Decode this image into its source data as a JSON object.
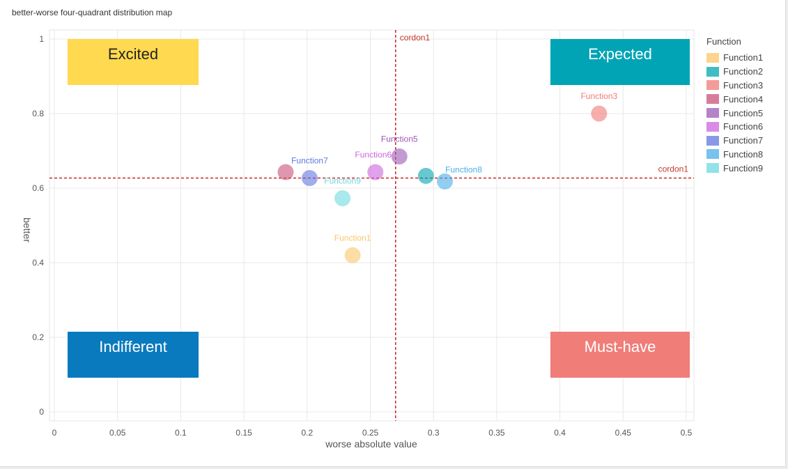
{
  "chart_title": "better-worse four-quadrant distribution map",
  "chart_data": {
    "type": "scatter",
    "title": "better-worse four-quadrant distribution map",
    "xlabel": "worse absolute value",
    "ylabel": "better",
    "xlim": [
      0,
      0.5
    ],
    "ylim": [
      0,
      1
    ],
    "xticks": [
      "0",
      "0.05",
      "0.1",
      "0.15",
      "0.2",
      "0.25",
      "0.3",
      "0.35",
      "0.4",
      "0.45",
      "0.5"
    ],
    "yticks": [
      "0",
      "0.2",
      "0.4",
      "0.6",
      "0.8",
      "1"
    ],
    "grid": true,
    "legend_title": "Function",
    "legend_position": "right",
    "series": [
      {
        "name": "Function1",
        "color": "#fbc66a",
        "x": 0.236,
        "y": 0.42
      },
      {
        "name": "Function2",
        "color": "#00a5b1",
        "x": 0.294,
        "y": 0.633
      },
      {
        "name": "Function3",
        "color": "#f07a76",
        "x": 0.431,
        "y": 0.8
      },
      {
        "name": "Function4",
        "color": "#c9517a",
        "x": 0.183,
        "y": 0.643
      },
      {
        "name": "Function5",
        "color": "#9b59b6",
        "x": 0.273,
        "y": 0.685
      },
      {
        "name": "Function6",
        "color": "#cc66dd",
        "x": 0.254,
        "y": 0.643
      },
      {
        "name": "Function7",
        "color": "#6277e0",
        "x": 0.202,
        "y": 0.627
      },
      {
        "name": "Function8",
        "color": "#4aaee8",
        "x": 0.309,
        "y": 0.618
      },
      {
        "name": "Function9",
        "color": "#6fd8e0",
        "x": 0.228,
        "y": 0.573
      }
    ],
    "point_labels": [
      {
        "series": "Function1",
        "text": "Function1"
      },
      {
        "series": "Function3",
        "text": "Function3"
      },
      {
        "series": "Function5",
        "text": "Function5"
      },
      {
        "series": "Function6",
        "text": "Function6"
      },
      {
        "series": "Function7",
        "text": "Function7"
      },
      {
        "series": "Function8",
        "text": "Function8"
      },
      {
        "series": "Function9",
        "text": "Function9"
      }
    ],
    "reference_lines": [
      {
        "orientation": "vertical",
        "value": 0.27,
        "label": "cordon1",
        "color": "#cc2222"
      },
      {
        "orientation": "horizontal",
        "value": 0.627,
        "label": "cordon1",
        "color": "#cc2222"
      }
    ],
    "quadrants": [
      {
        "label": "Excited",
        "position": "top-left",
        "color": "#ffd94f",
        "text_color": "#222222"
      },
      {
        "label": "Expected",
        "position": "top-right",
        "color": "#00a4b4",
        "text_color": "#ffffff"
      },
      {
        "label": "Indifferent",
        "position": "bottom-left",
        "color": "#0a7abe",
        "text_color": "#ffffff"
      },
      {
        "label": "Must-have",
        "position": "bottom-right",
        "color": "#f07d78",
        "text_color": "#ffffff"
      }
    ]
  }
}
